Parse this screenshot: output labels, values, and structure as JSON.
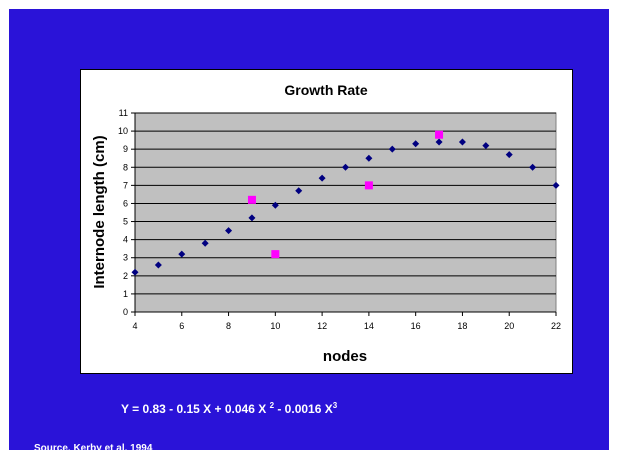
{
  "slide": {
    "background_color": "#2a13d8",
    "equation": {
      "part1": "Y = 0.83 - 0.15 X + 0.046 X ",
      "sup1": "2",
      "part2": " - 0.0016 X",
      "sup2": "3"
    },
    "source": "Source, Kerby et al, 1994"
  },
  "chart_data": {
    "type": "scatter",
    "title": "Growth Rate",
    "xlabel": "nodes",
    "ylabel": "Internode length (cm)",
    "xlim": [
      4,
      22
    ],
    "ylim": [
      0,
      11
    ],
    "xticks": [
      4,
      6,
      8,
      10,
      12,
      14,
      16,
      18,
      20,
      22
    ],
    "yticks": [
      0,
      1,
      2,
      3,
      4,
      5,
      6,
      7,
      8,
      9,
      10,
      11
    ],
    "grid": true,
    "plot_background": "#c0c0c0",
    "series": [
      {
        "marker": "diamond",
        "color": "#000080",
        "x": [
          4,
          5,
          6,
          7,
          8,
          9,
          10,
          11,
          12,
          13,
          14,
          15,
          16,
          17,
          18,
          19,
          20,
          21,
          22
        ],
        "y": [
          2.2,
          2.6,
          3.2,
          3.8,
          4.5,
          5.2,
          5.9,
          6.7,
          7.4,
          8.0,
          8.5,
          9.0,
          9.3,
          9.4,
          9.4,
          9.2,
          8.7,
          8.0,
          7.0
        ]
      },
      {
        "marker": "square",
        "color": "#ff00ff",
        "x": [
          9,
          10,
          14,
          17
        ],
        "y": [
          6.2,
          3.2,
          7.0,
          9.8
        ]
      }
    ]
  }
}
